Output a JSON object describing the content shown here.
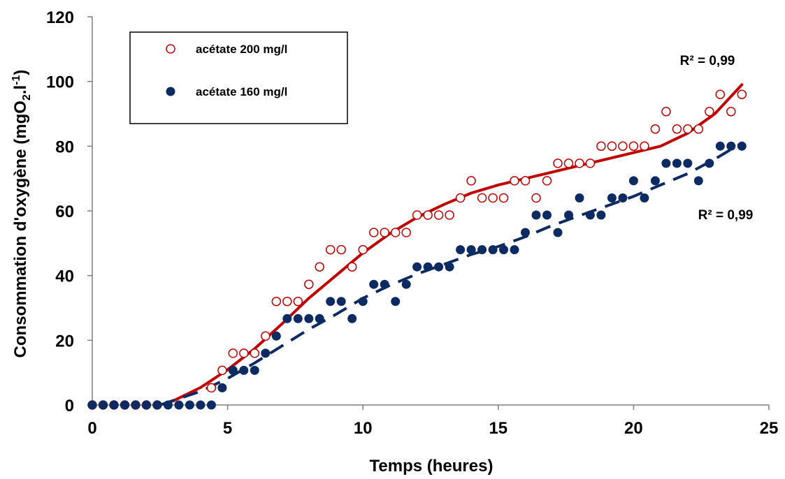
{
  "chart_data": {
    "type": "scatter",
    "xlabel": "Temps (heures)",
    "ylabel_parts": [
      "Consommation d'oxygène (mgO",
      "2",
      ".l",
      "-1",
      ")"
    ],
    "xlim": [
      0,
      25
    ],
    "ylim": [
      0,
      120
    ],
    "x_ticks": [
      0,
      5,
      10,
      15,
      20,
      25
    ],
    "y_ticks": [
      0,
      20,
      40,
      60,
      80,
      100,
      120
    ],
    "grid": false,
    "legend_position": "top-left",
    "series": [
      {
        "name": "acétate 200 mg/l",
        "marker": "open-circle",
        "color": "#c00000",
        "trend_style": "solid",
        "r2_label": "R² = 0,99",
        "points": [
          [
            0,
            0
          ],
          [
            0.4,
            0
          ],
          [
            0.8,
            0
          ],
          [
            1.2,
            0
          ],
          [
            1.6,
            0
          ],
          [
            2.0,
            0
          ],
          [
            2.4,
            0
          ],
          [
            4.4,
            5.3
          ],
          [
            4.8,
            10.7
          ],
          [
            5.2,
            16
          ],
          [
            5.6,
            16
          ],
          [
            6.0,
            16
          ],
          [
            6.4,
            21.3
          ],
          [
            6.8,
            32
          ],
          [
            7.2,
            32
          ],
          [
            7.6,
            32
          ],
          [
            8.0,
            37.3
          ],
          [
            8.4,
            42.7
          ],
          [
            8.8,
            48
          ],
          [
            9.2,
            48
          ],
          [
            9.6,
            42.7
          ],
          [
            10.0,
            48
          ],
          [
            10.4,
            53.3
          ],
          [
            10.8,
            53.3
          ],
          [
            11.2,
            53.3
          ],
          [
            11.6,
            53.3
          ],
          [
            12.0,
            58.7
          ],
          [
            12.4,
            58.7
          ],
          [
            12.8,
            58.7
          ],
          [
            13.2,
            58.7
          ],
          [
            13.6,
            64
          ],
          [
            14.0,
            69.3
          ],
          [
            14.4,
            64
          ],
          [
            14.8,
            64
          ],
          [
            15.2,
            64
          ],
          [
            15.6,
            69.3
          ],
          [
            16.0,
            69.3
          ],
          [
            16.4,
            64
          ],
          [
            16.8,
            69.3
          ],
          [
            17.2,
            74.7
          ],
          [
            17.6,
            74.7
          ],
          [
            18.0,
            74.7
          ],
          [
            18.4,
            74.7
          ],
          [
            18.8,
            80
          ],
          [
            19.2,
            80
          ],
          [
            19.6,
            80
          ],
          [
            20.0,
            80
          ],
          [
            20.4,
            80
          ],
          [
            20.8,
            85.3
          ],
          [
            21.2,
            90.7
          ],
          [
            21.6,
            85.3
          ],
          [
            22.0,
            85.3
          ],
          [
            22.4,
            85.3
          ],
          [
            22.8,
            90.7
          ],
          [
            23.2,
            96
          ],
          [
            23.6,
            90.7
          ],
          [
            24.0,
            96
          ]
        ],
        "trend": [
          [
            2.5,
            0
          ],
          [
            3,
            1.3
          ],
          [
            4,
            5.4
          ],
          [
            5,
            10.9
          ],
          [
            6,
            17.4
          ],
          [
            7,
            25
          ],
          [
            8,
            33
          ],
          [
            9,
            40
          ],
          [
            10,
            47
          ],
          [
            11,
            53
          ],
          [
            12,
            58
          ],
          [
            13,
            62
          ],
          [
            14,
            65.5
          ],
          [
            15,
            68
          ],
          [
            16,
            70
          ],
          [
            17,
            72
          ],
          [
            18,
            74
          ],
          [
            19,
            76
          ],
          [
            20,
            78
          ],
          [
            21,
            80
          ],
          [
            22,
            84
          ],
          [
            23,
            90
          ],
          [
            24,
            99
          ]
        ]
      },
      {
        "name": "acétate 160 mg/l",
        "marker": "filled-circle",
        "color": "#0d2b63",
        "trend_style": "dashed",
        "r2_label": "R² = 0,99",
        "points": [
          [
            0,
            0
          ],
          [
            0.4,
            0
          ],
          [
            0.8,
            0
          ],
          [
            1.2,
            0
          ],
          [
            1.6,
            0
          ],
          [
            2.0,
            0
          ],
          [
            2.4,
            0
          ],
          [
            2.8,
            0
          ],
          [
            3.2,
            0
          ],
          [
            3.6,
            0
          ],
          [
            4.0,
            0
          ],
          [
            4.4,
            0
          ],
          [
            4.8,
            5.3
          ],
          [
            5.2,
            10.7
          ],
          [
            5.6,
            10.7
          ],
          [
            6.0,
            10.7
          ],
          [
            6.4,
            16
          ],
          [
            6.8,
            21.3
          ],
          [
            7.2,
            26.7
          ],
          [
            7.6,
            26.7
          ],
          [
            8.0,
            26.7
          ],
          [
            8.4,
            26.7
          ],
          [
            8.8,
            32
          ],
          [
            9.2,
            32
          ],
          [
            9.6,
            26.7
          ],
          [
            10.0,
            32
          ],
          [
            10.4,
            37.3
          ],
          [
            10.8,
            37.3
          ],
          [
            11.2,
            32
          ],
          [
            11.6,
            37.3
          ],
          [
            12.0,
            42.7
          ],
          [
            12.4,
            42.7
          ],
          [
            12.8,
            42.7
          ],
          [
            13.2,
            42.7
          ],
          [
            13.6,
            48
          ],
          [
            14.0,
            48
          ],
          [
            14.4,
            48
          ],
          [
            14.8,
            48
          ],
          [
            15.2,
            48
          ],
          [
            15.6,
            48
          ],
          [
            16.0,
            53.3
          ],
          [
            16.4,
            58.7
          ],
          [
            16.8,
            58.7
          ],
          [
            17.2,
            53.3
          ],
          [
            17.6,
            58.7
          ],
          [
            18.0,
            64
          ],
          [
            18.4,
            58.7
          ],
          [
            18.8,
            58.7
          ],
          [
            19.2,
            64
          ],
          [
            19.6,
            64
          ],
          [
            20.0,
            69.3
          ],
          [
            20.4,
            64
          ],
          [
            20.8,
            69.3
          ],
          [
            21.2,
            74.7
          ],
          [
            21.6,
            74.7
          ],
          [
            22.0,
            74.7
          ],
          [
            22.4,
            69.3
          ],
          [
            22.8,
            74.7
          ],
          [
            23.2,
            80
          ],
          [
            23.6,
            80
          ],
          [
            24.0,
            80
          ]
        ],
        "trend": [
          [
            2.5,
            0
          ],
          [
            3,
            1.4
          ],
          [
            4,
            4.2
          ],
          [
            5,
            8.2
          ],
          [
            6,
            13
          ],
          [
            7,
            18.2
          ],
          [
            8,
            23.4
          ],
          [
            9,
            28
          ],
          [
            10,
            33
          ],
          [
            11,
            37
          ],
          [
            12,
            40.5
          ],
          [
            13,
            43.5
          ],
          [
            14,
            46.5
          ],
          [
            15,
            49
          ],
          [
            16,
            52
          ],
          [
            17,
            55.5
          ],
          [
            18,
            58.5
          ],
          [
            19,
            61.5
          ],
          [
            20,
            64.5
          ],
          [
            21,
            68
          ],
          [
            22,
            71.5
          ],
          [
            23,
            76
          ],
          [
            24,
            81
          ]
        ]
      }
    ]
  }
}
